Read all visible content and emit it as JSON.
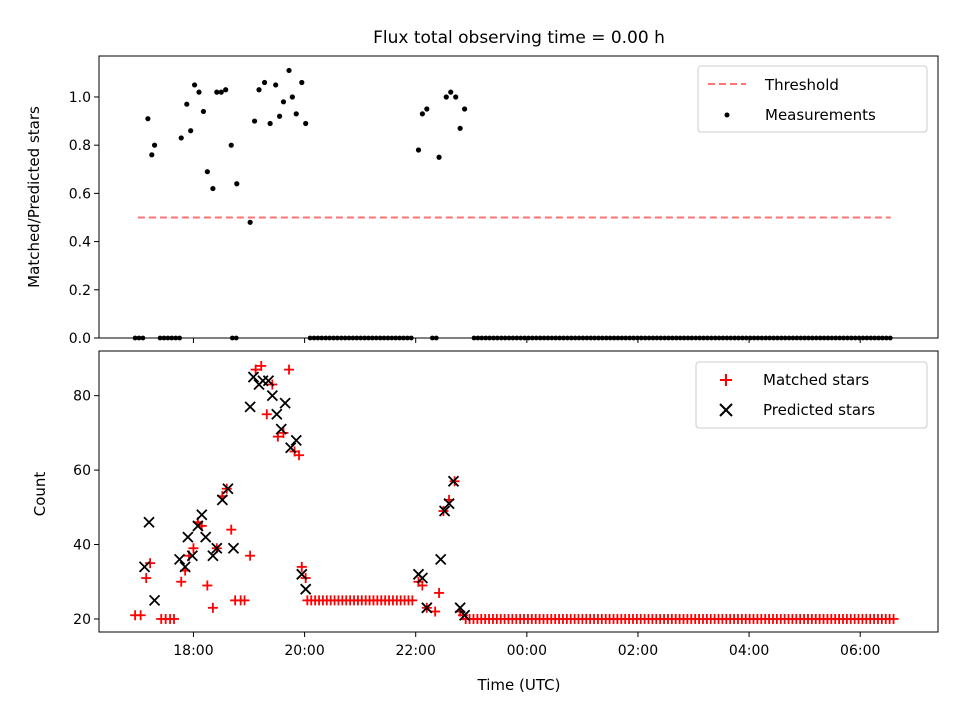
{
  "title": "Flux total observing time = 0.00 h",
  "chart_data": [
    {
      "type": "scatter",
      "ylabel": "Matched/Predicted stars",
      "ylim": [
        0,
        1.17
      ],
      "yticks": [
        0.0,
        0.2,
        0.4,
        0.6,
        0.8,
        1.0
      ],
      "ytick_labels": [
        "0.0",
        "0.2",
        "0.4",
        "0.6",
        "0.8",
        "1.0"
      ],
      "threshold": {
        "label": "Threshold",
        "value": 0.5,
        "x_range": [
          17.0,
          30.55
        ],
        "color": "#ff7373"
      },
      "measurements": {
        "label": "Measurements",
        "color": "#000000",
        "points": [
          [
            17.18,
            0.91
          ],
          [
            17.25,
            0.76
          ],
          [
            17.3,
            0.8
          ],
          [
            17.78,
            0.83
          ],
          [
            17.88,
            0.97
          ],
          [
            17.95,
            0.86
          ],
          [
            18.02,
            1.05
          ],
          [
            18.1,
            1.02
          ],
          [
            18.18,
            0.94
          ],
          [
            18.25,
            0.69
          ],
          [
            18.35,
            0.62
          ],
          [
            18.42,
            1.02
          ],
          [
            18.5,
            1.02
          ],
          [
            18.58,
            1.03
          ],
          [
            18.68,
            0.8
          ],
          [
            18.78,
            0.64
          ],
          [
            19.02,
            0.48
          ],
          [
            19.1,
            0.9
          ],
          [
            19.18,
            1.03
          ],
          [
            19.28,
            1.06
          ],
          [
            19.38,
            0.89
          ],
          [
            19.48,
            1.05
          ],
          [
            19.55,
            0.92
          ],
          [
            19.62,
            0.98
          ],
          [
            19.72,
            1.11
          ],
          [
            19.78,
            1.0
          ],
          [
            19.85,
            0.93
          ],
          [
            19.95,
            1.06
          ],
          [
            20.02,
            0.89
          ],
          [
            22.05,
            0.78
          ],
          [
            22.12,
            0.93
          ],
          [
            22.2,
            0.95
          ],
          [
            22.42,
            0.75
          ],
          [
            22.55,
            1.0
          ],
          [
            22.63,
            1.02
          ],
          [
            22.72,
            1.0
          ],
          [
            22.8,
            0.87
          ],
          [
            22.88,
            0.95
          ]
        ],
        "zero_segments": [
          [
            16.95,
            17.1
          ],
          [
            17.4,
            17.75
          ],
          [
            18.7,
            18.8
          ],
          [
            20.1,
            21.95
          ],
          [
            22.3,
            22.4
          ],
          [
            23.05,
            30.55
          ]
        ]
      }
    },
    {
      "type": "scatter",
      "xlabel": "Time (UTC)",
      "ylabel": "Count",
      "ylim": [
        16.5,
        92
      ],
      "xlim": [
        16.3,
        31.4
      ],
      "xticks": [
        18,
        20,
        22,
        24,
        26,
        28,
        30
      ],
      "xtick_labels": [
        "18:00",
        "20:00",
        "22:00",
        "00:00",
        "02:00",
        "04:00",
        "06:00"
      ],
      "yticks": [
        20,
        40,
        60,
        80
      ],
      "ytick_labels": [
        "20",
        "40",
        "60",
        "80"
      ],
      "matched": {
        "label": "Matched stars",
        "color": "#ff0000",
        "points": [
          [
            16.95,
            21
          ],
          [
            17.05,
            21
          ],
          [
            17.15,
            31
          ],
          [
            17.22,
            35
          ],
          [
            17.42,
            20
          ],
          [
            17.5,
            20
          ],
          [
            17.58,
            20
          ],
          [
            17.65,
            20
          ],
          [
            17.78,
            30
          ],
          [
            17.85,
            33
          ],
          [
            17.92,
            37
          ],
          [
            18.0,
            39
          ],
          [
            18.08,
            46
          ],
          [
            18.15,
            45
          ],
          [
            18.25,
            29
          ],
          [
            18.35,
            23
          ],
          [
            18.42,
            39
          ],
          [
            18.52,
            53
          ],
          [
            18.6,
            55
          ],
          [
            18.68,
            44
          ],
          [
            18.75,
            25
          ],
          [
            18.85,
            25
          ],
          [
            18.92,
            25
          ],
          [
            19.02,
            37
          ],
          [
            19.12,
            87
          ],
          [
            19.22,
            88
          ],
          [
            19.32,
            75
          ],
          [
            19.42,
            83
          ],
          [
            19.52,
            69
          ],
          [
            19.62,
            70
          ],
          [
            19.72,
            87
          ],
          [
            19.82,
            65
          ],
          [
            19.9,
            64
          ],
          [
            19.95,
            34
          ],
          [
            20.02,
            31
          ],
          [
            22.05,
            30
          ],
          [
            22.12,
            29
          ],
          [
            22.2,
            23
          ],
          [
            22.35,
            22
          ],
          [
            22.42,
            27
          ],
          [
            22.5,
            49
          ],
          [
            22.6,
            52
          ],
          [
            22.7,
            57
          ],
          [
            22.8,
            22
          ],
          [
            22.85,
            21
          ]
        ],
        "baseline_value": 25,
        "baseline_segment": [
          20.05,
          21.98
        ],
        "tail_value": 20,
        "tail_segment": [
          22.9,
          30.6
        ]
      },
      "predicted": {
        "label": "Predicted stars",
        "color": "#000000",
        "points": [
          [
            17.12,
            34
          ],
          [
            17.2,
            46
          ],
          [
            17.3,
            25
          ],
          [
            17.75,
            36
          ],
          [
            17.85,
            34
          ],
          [
            17.9,
            42
          ],
          [
            17.98,
            37
          ],
          [
            18.08,
            45
          ],
          [
            18.15,
            48
          ],
          [
            18.22,
            42
          ],
          [
            18.35,
            37
          ],
          [
            18.42,
            39
          ],
          [
            18.52,
            52
          ],
          [
            18.62,
            55
          ],
          [
            18.72,
            39
          ],
          [
            19.02,
            77
          ],
          [
            19.08,
            85
          ],
          [
            19.18,
            83
          ],
          [
            19.25,
            84
          ],
          [
            19.35,
            84
          ],
          [
            19.42,
            80
          ],
          [
            19.5,
            75
          ],
          [
            19.58,
            71
          ],
          [
            19.65,
            78
          ],
          [
            19.75,
            66
          ],
          [
            19.85,
            68
          ],
          [
            19.95,
            32
          ],
          [
            20.02,
            28
          ],
          [
            22.05,
            32
          ],
          [
            22.12,
            31
          ],
          [
            22.2,
            23
          ],
          [
            22.45,
            36
          ],
          [
            22.52,
            49
          ],
          [
            22.6,
            51
          ],
          [
            22.68,
            57
          ],
          [
            22.8,
            23
          ],
          [
            22.88,
            21
          ]
        ]
      }
    }
  ]
}
